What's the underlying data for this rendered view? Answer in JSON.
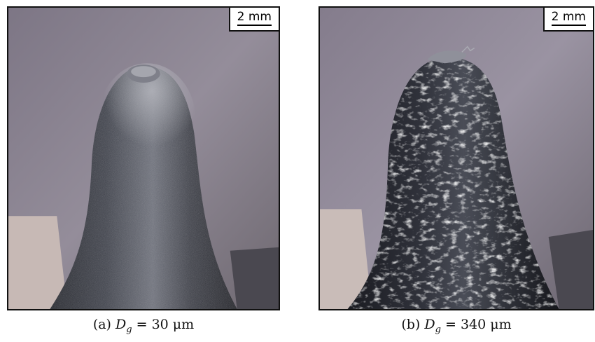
{
  "panels": [
    {
      "scale_label": "2 mm",
      "caption_tag": "(a)",
      "caption_var": "D",
      "caption_sub": "g",
      "caption_value": "= 30 μm"
    },
    {
      "scale_label": "2 mm",
      "caption_tag": "(b)",
      "caption_var": "D",
      "caption_sub": "g",
      "caption_value": "= 340 μm"
    }
  ],
  "colors": {
    "background_top": "#8a8390",
    "background_bottom": "#a59ea8",
    "specimen_dark": "#2a2c33",
    "specimen_highlight": "#9ea0a8",
    "floor_light": "#c9bcb8"
  }
}
